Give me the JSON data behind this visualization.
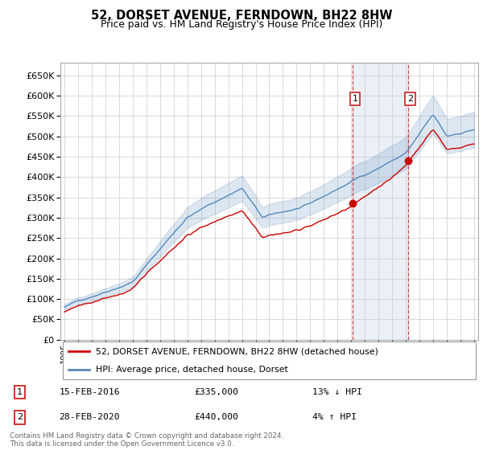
{
  "title": "52, DORSET AVENUE, FERNDOWN, BH22 8HW",
  "subtitle": "Price paid vs. HM Land Registry's House Price Index (HPI)",
  "legend_line1": "52, DORSET AVENUE, FERNDOWN, BH22 8HW (detached house)",
  "legend_line2": "HPI: Average price, detached house, Dorset",
  "transaction1_date": "15-FEB-2016",
  "transaction1_price": "£335,000",
  "transaction1_hpi": "13% ↓ HPI",
  "transaction2_date": "28-FEB-2020",
  "transaction2_price": "£440,000",
  "transaction2_hpi": "4% ↑ HPI",
  "footer": "Contains HM Land Registry data © Crown copyright and database right 2024.\nThis data is licensed under the Open Government Licence v3.0.",
  "red_color": "#cc0000",
  "blue_color": "#5588bb",
  "vline_color": "#cc2222",
  "ylim_min": 0,
  "ylim_max": 680000,
  "sale_year1": 2016.12,
  "sale_year2": 2020.16,
  "sale_price1": 335000,
  "sale_price2": 440000
}
